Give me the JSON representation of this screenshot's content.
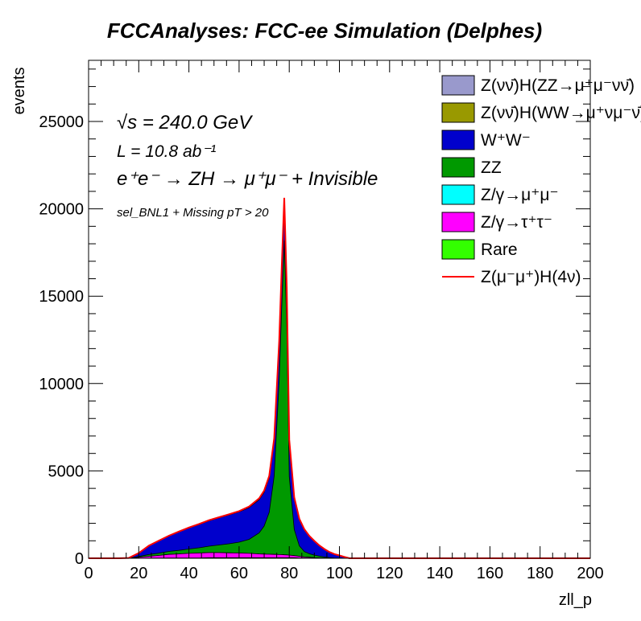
{
  "chart_data": {
    "type": "area",
    "title": "FCCAnalyses: FCC-ee Simulation (Delphes)",
    "xlabel": "zll_p",
    "ylabel": "events",
    "xlim": [
      0,
      200
    ],
    "ylim": [
      0,
      28500
    ],
    "x_ticks": [
      "0",
      "20",
      "40",
      "60",
      "80",
      "100",
      "120",
      "140",
      "160",
      "180",
      "200"
    ],
    "y_ticks": [
      "0",
      "5000",
      "10000",
      "15000",
      "20000",
      "25000"
    ],
    "annotations": {
      "sqrt_s": "√s = 240.0 GeV",
      "lumi": "L = 10.8 ab⁻¹",
      "process": "e⁺e⁻ → ZH → μ⁺μ⁻ + Invisible",
      "selection": "sel_BNL1 + Missing pT > 20"
    },
    "legend_position": "top-right",
    "x": [
      12,
      16,
      20,
      24,
      28,
      32,
      36,
      40,
      44,
      48,
      52,
      56,
      60,
      64,
      68,
      70,
      72,
      74,
      76,
      77,
      78,
      79,
      80,
      82,
      84,
      86,
      88,
      90,
      92,
      94,
      96,
      98,
      100,
      102,
      104
    ],
    "series": [
      {
        "name": "Z(νν̄)H(ZZ→μ⁺μ⁻νν̄)",
        "color": "#9999cc",
        "values": [
          0,
          0,
          0,
          0,
          0,
          0,
          0,
          0,
          0,
          0,
          0,
          0,
          0,
          0,
          0,
          0,
          0,
          0,
          0,
          0,
          0,
          0,
          0,
          0,
          0,
          0,
          0,
          0,
          0,
          0,
          0,
          0,
          0,
          0,
          0
        ]
      },
      {
        "name": "Z(νν̄)H(WW→μ⁺νμ⁻ν̄)",
        "color": "#999900",
        "values": [
          0,
          0,
          0,
          0,
          0,
          0,
          0,
          0,
          0,
          0,
          0,
          0,
          0,
          0,
          0,
          0,
          0,
          0,
          0,
          0,
          0,
          0,
          0,
          0,
          0,
          0,
          0,
          0,
          0,
          0,
          0,
          0,
          0,
          0,
          0
        ]
      },
      {
        "name": "W⁺W⁻",
        "color": "#0000cc",
        "values": [
          0,
          20,
          200,
          500,
          700,
          880,
          1050,
          1200,
          1330,
          1450,
          1550,
          1650,
          1730,
          1820,
          1900,
          1930,
          1960,
          1990,
          2010,
          2020,
          2030,
          2020,
          1950,
          1750,
          1500,
          1250,
          1000,
          800,
          600,
          450,
          320,
          220,
          150,
          80,
          0
        ]
      },
      {
        "name": "ZZ",
        "color": "#009900",
        "values": [
          0,
          0,
          50,
          100,
          130,
          170,
          200,
          250,
          300,
          370,
          440,
          520,
          620,
          800,
          1200,
          1600,
          2400,
          4500,
          10000,
          14200,
          18000,
          13000,
          4500,
          1500,
          600,
          300,
          200,
          150,
          100,
          60,
          40,
          20,
          10,
          0,
          0
        ]
      },
      {
        "name": "Z/γ→μ⁺μ⁻",
        "color": "#00ffff",
        "values": [
          0,
          0,
          0,
          0,
          0,
          0,
          0,
          0,
          0,
          0,
          0,
          0,
          0,
          0,
          0,
          0,
          0,
          0,
          0,
          0,
          0,
          0,
          0,
          0,
          0,
          0,
          0,
          0,
          0,
          0,
          0,
          0,
          0,
          0,
          0
        ]
      },
      {
        "name": "Z/γ→τ⁺τ⁻",
        "color": "#ff00ff",
        "values": [
          0,
          0,
          50,
          100,
          150,
          200,
          230,
          260,
          280,
          290,
          290,
          280,
          270,
          250,
          220,
          210,
          200,
          190,
          180,
          175,
          170,
          165,
          150,
          120,
          90,
          60,
          40,
          20,
          10,
          5,
          0,
          0,
          0,
          0,
          0
        ]
      },
      {
        "name": "Rare",
        "color": "#33ff00",
        "values": [
          0,
          0,
          0,
          10,
          10,
          20,
          20,
          20,
          20,
          30,
          30,
          30,
          30,
          30,
          30,
          30,
          30,
          30,
          30,
          30,
          30,
          30,
          30,
          30,
          20,
          20,
          20,
          10,
          10,
          10,
          0,
          0,
          0,
          0,
          0
        ]
      },
      {
        "name": "Z(μ⁻μ⁺)H(4ν)",
        "color": "#ff0000",
        "values": [
          0,
          0,
          0,
          10,
          20,
          20,
          30,
          30,
          30,
          40,
          40,
          40,
          50,
          60,
          80,
          100,
          120,
          150,
          200,
          300,
          400,
          300,
          150,
          80,
          50,
          30,
          20,
          10,
          10,
          5,
          0,
          0,
          0,
          0,
          0
        ]
      }
    ]
  }
}
